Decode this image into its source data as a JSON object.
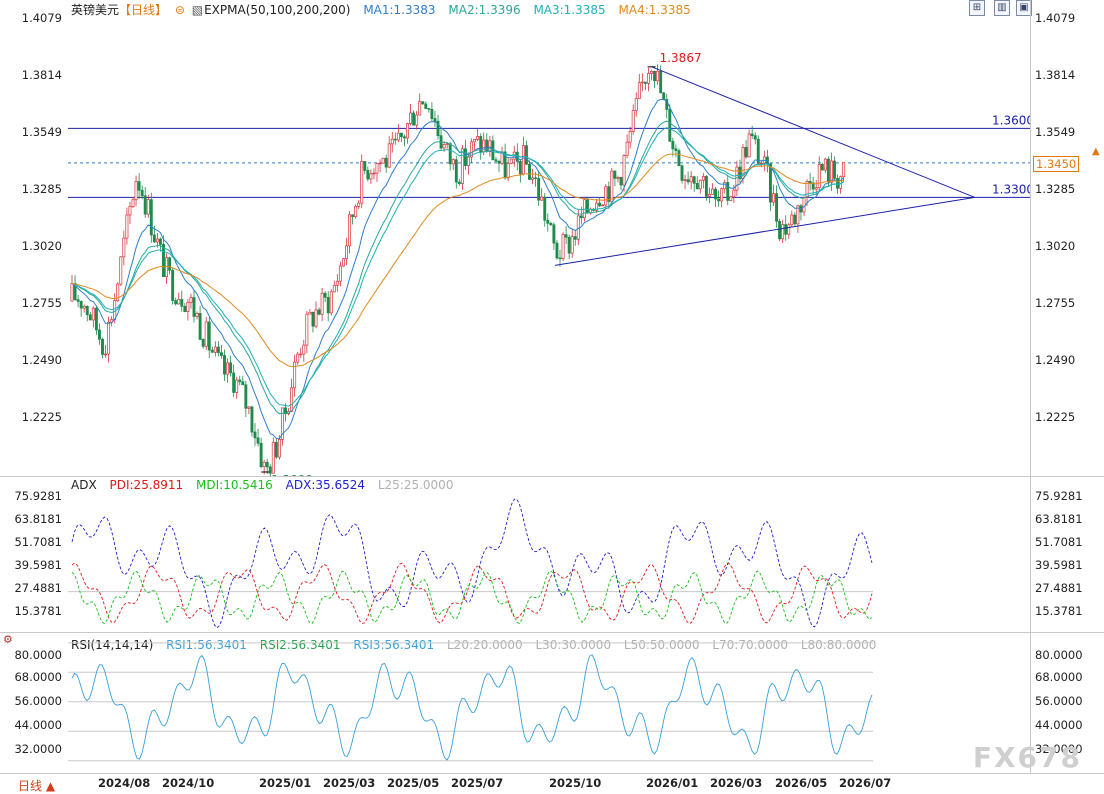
{
  "header": {
    "symbol": "英镑美元",
    "period": "【日线】",
    "indicator": "EXPMA(50,100,200,200)",
    "ma1": "MA1:1.3383",
    "ma2": "MA2:1.3396",
    "ma3": "MA3:1.3385",
    "ma4": "MA4:1.3385"
  },
  "colors": {
    "up": "#d6323a",
    "down": "#1f8a4c",
    "ma1": "#2f7ec8",
    "ma2": "#2aa89a",
    "ma3": "#1eb0b8",
    "ma4": "#e08a1e",
    "trendline": "#1c20a8",
    "pdi": "#e01818",
    "mdi": "#18c018",
    "adx": "#2020d0",
    "rsi": "#3aa0d8"
  },
  "price_axis": [
    "1.4079",
    "1.3814",
    "1.3549",
    "1.3285",
    "1.3020",
    "1.2755",
    "1.2490",
    "1.2225"
  ],
  "annotations": {
    "high": "1.3867",
    "low": "1.2099",
    "level_upper": "1.3600",
    "level_lower": "1.3300",
    "current_price": "1.3450"
  },
  "adx_panel": {
    "title": "ADX",
    "pdi": "PDI:25.8911",
    "mdi": "MDI:10.5416",
    "adx": "ADX:35.6524",
    "l25": "L25:25.0000",
    "axis": [
      "75.9281",
      "63.8181",
      "51.7081",
      "39.5981",
      "27.4881",
      "15.3781"
    ]
  },
  "rsi_panel": {
    "title": "RSI(14,14,14)",
    "rsi1": "RSI1:56.3401",
    "rsi2": "RSI2:56.3401",
    "rsi3": "RSI3:56.3401",
    "l20": "L20:20.0000",
    "l30": "L30:30.0000",
    "l50": "L50:50.0000",
    "l70": "L70:70.0000",
    "l80": "L80:80.0000",
    "axis": [
      "80.0000",
      "68.0000",
      "56.0000",
      "44.0000",
      "32.0000"
    ]
  },
  "x_axis": [
    "2024/08",
    "2024/10",
    "2025/01",
    "2025/03",
    "2025/05",
    "2025/07",
    "2025/10",
    "2026/01",
    "2026/03",
    "2026/05",
    "2026/07"
  ],
  "period_selector": "日线 ▲",
  "watermark": "FX678",
  "chart_data": {
    "type": "candlestick",
    "symbol": "GBP/USD",
    "timeframe": "daily",
    "ylim": [
      1.2099,
      1.4079
    ],
    "x_range": [
      "2024/07",
      "2026/07"
    ],
    "price_path": [
      {
        "date": "2024/07",
        "close": 1.285
      },
      {
        "date": "2024/08",
        "close": 1.27
      },
      {
        "date": "2024/09",
        "close": 1.335
      },
      {
        "date": "2024/10",
        "close": 1.3
      },
      {
        "date": "2024/11",
        "close": 1.27
      },
      {
        "date": "2024/12",
        "close": 1.255
      },
      {
        "date": "2025/01",
        "close": 1.2099
      },
      {
        "date": "2025/02",
        "close": 1.26
      },
      {
        "date": "2025/03",
        "close": 1.29
      },
      {
        "date": "2025/04",
        "close": 1.335
      },
      {
        "date": "2025/05",
        "close": 1.355
      },
      {
        "date": "2025/06",
        "close": 1.37
      },
      {
        "date": "2025/07",
        "close": 1.345
      },
      {
        "date": "2025/08",
        "close": 1.35
      },
      {
        "date": "2025/09",
        "close": 1.345
      },
      {
        "date": "2025/10",
        "close": 1.31
      },
      {
        "date": "2025/11",
        "close": 1.32
      },
      {
        "date": "2025/12",
        "close": 1.345
      },
      {
        "date": "2026/01",
        "close": 1.3867
      },
      {
        "date": "2026/02",
        "close": 1.345
      },
      {
        "date": "2026/03",
        "close": 1.325
      },
      {
        "date": "2026/04",
        "close": 1.355
      },
      {
        "date": "2026/05",
        "close": 1.32
      },
      {
        "date": "2026/06",
        "close": 1.335
      },
      {
        "date": "2026/07",
        "close": 1.345
      }
    ],
    "series": [
      {
        "name": "MA1",
        "last": 1.3383
      },
      {
        "name": "MA2",
        "last": 1.3396
      },
      {
        "name": "MA3",
        "last": 1.3385
      },
      {
        "name": "MA4",
        "last": 1.3385
      }
    ],
    "horizontal_levels": [
      1.36,
      1.33,
      1.345
    ],
    "triangle": {
      "upper": [
        [
          "2026/01",
          1.3867
        ],
        [
          "2026/07",
          1.33
        ]
      ],
      "lower": [
        [
          "2025/10",
          1.3005
        ],
        [
          "2026/07",
          1.33
        ]
      ]
    },
    "extremes": {
      "high": 1.3867,
      "low": 1.2099
    },
    "adx": {
      "ylim": [
        9,
        80
      ],
      "pdi": 25.8911,
      "mdi": 10.5416,
      "adx": 35.6524,
      "l25": 25
    },
    "rsi": {
      "ylim": [
        27,
        84
      ],
      "rsi1": 56.3401,
      "rsi2": 56.3401,
      "rsi3": 56.3401,
      "levels": [
        80,
        68,
        56,
        44,
        32
      ]
    }
  }
}
